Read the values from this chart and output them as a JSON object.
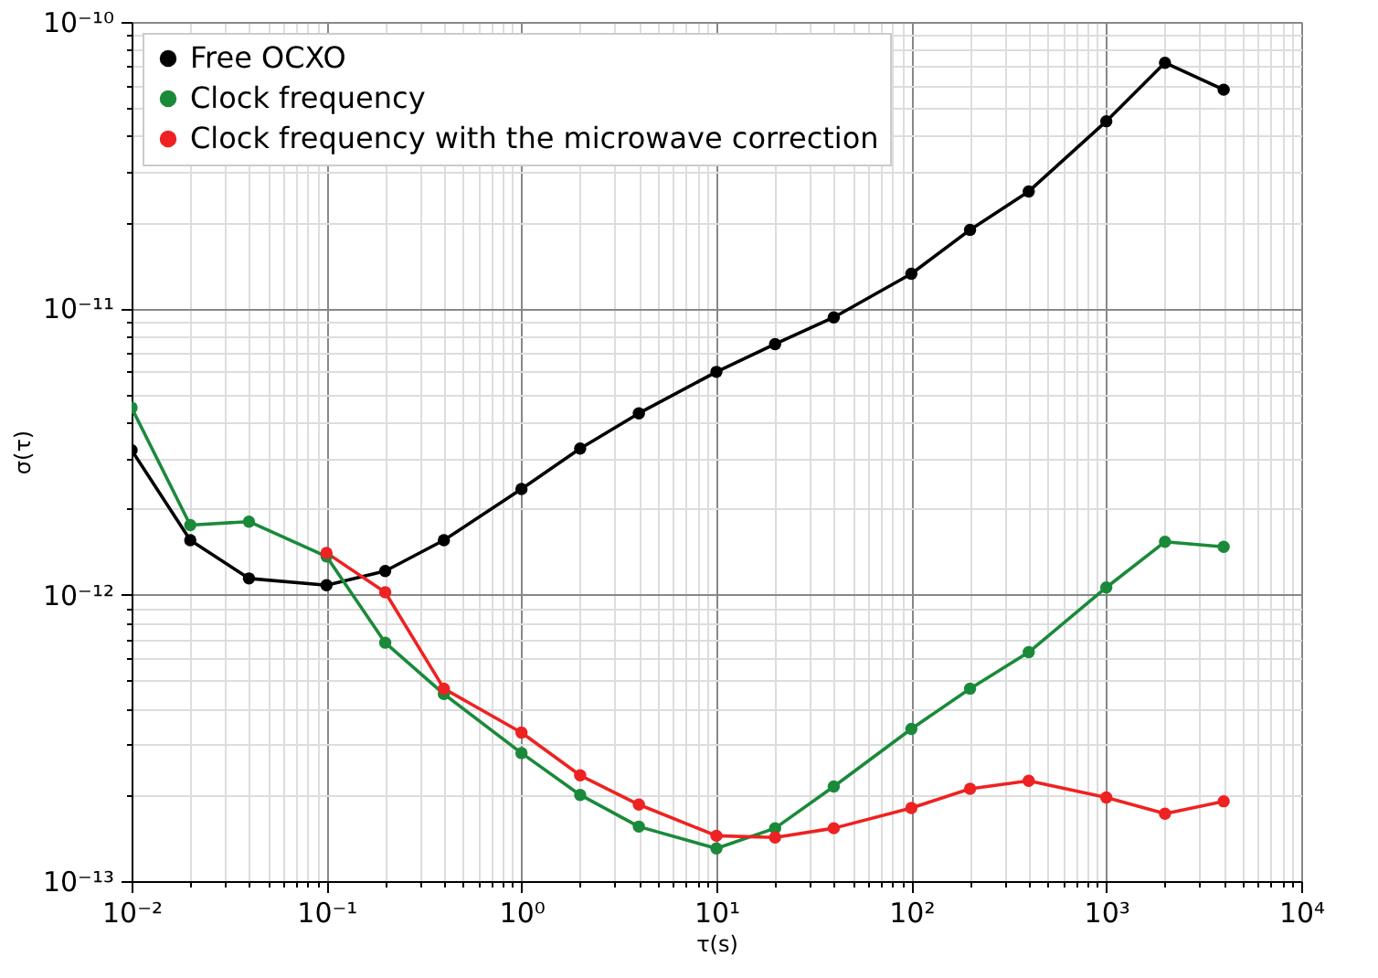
{
  "chart_data": {
    "type": "line",
    "xlabel": "τ(s)",
    "ylabel": "σ(τ)",
    "log": "xy",
    "grid": true,
    "legend": "top left",
    "marker": "circle",
    "line_style": "solid",
    "xlim": [
      0.01,
      10000
    ],
    "ylim": [
      1e-13,
      1e-10
    ],
    "xticks": [
      {
        "value": 0.01,
        "label": "10⁻²"
      },
      {
        "value": 0.02,
        "label": null
      },
      {
        "value": 0.03,
        "label": null
      },
      {
        "value": 0.04,
        "label": null
      },
      {
        "value": 0.05,
        "label": null
      },
      {
        "value": 0.06,
        "label": null
      },
      {
        "value": 0.07,
        "label": null
      },
      {
        "value": 0.08,
        "label": null
      },
      {
        "value": 0.09,
        "label": null
      },
      {
        "value": 0.1,
        "label": "10⁻¹"
      },
      {
        "value": 0.2,
        "label": null
      },
      {
        "value": 0.3,
        "label": null
      },
      {
        "value": 0.4,
        "label": null
      },
      {
        "value": 0.5,
        "label": null
      },
      {
        "value": 0.6,
        "label": null
      },
      {
        "value": 0.7,
        "label": null
      },
      {
        "value": 0.8,
        "label": null
      },
      {
        "value": 0.9,
        "label": null
      },
      {
        "value": 1,
        "label": "10⁰"
      },
      {
        "value": 2,
        "label": null
      },
      {
        "value": 3,
        "label": null
      },
      {
        "value": 4,
        "label": null
      },
      {
        "value": 5,
        "label": null
      },
      {
        "value": 6,
        "label": null
      },
      {
        "value": 7,
        "label": null
      },
      {
        "value": 8,
        "label": null
      },
      {
        "value": 9,
        "label": null
      },
      {
        "value": 10,
        "label": "10¹"
      },
      {
        "value": 20,
        "label": null
      },
      {
        "value": 30,
        "label": null
      },
      {
        "value": 40,
        "label": null
      },
      {
        "value": 50,
        "label": null
      },
      {
        "value": 60,
        "label": null
      },
      {
        "value": 70,
        "label": null
      },
      {
        "value": 80,
        "label": null
      },
      {
        "value": 90,
        "label": null
      },
      {
        "value": 100,
        "label": "10²"
      },
      {
        "value": 200,
        "label": null
      },
      {
        "value": 300,
        "label": null
      },
      {
        "value": 400,
        "label": null
      },
      {
        "value": 500,
        "label": null
      },
      {
        "value": 600,
        "label": null
      },
      {
        "value": 700,
        "label": null
      },
      {
        "value": 800,
        "label": null
      },
      {
        "value": 900,
        "label": null
      },
      {
        "value": 1000,
        "label": "10³"
      },
      {
        "value": 2000,
        "label": null
      },
      {
        "value": 3000,
        "label": null
      },
      {
        "value": 4000,
        "label": null
      },
      {
        "value": 5000,
        "label": null
      },
      {
        "value": 6000,
        "label": null
      },
      {
        "value": 7000,
        "label": null
      },
      {
        "value": 8000,
        "label": null
      },
      {
        "value": 9000,
        "label": null
      },
      {
        "value": 10000,
        "label": "10⁴"
      }
    ],
    "yticks": [
      {
        "value": 1e-13,
        "label": "10⁻¹³"
      },
      {
        "value": 2e-13,
        "label": null
      },
      {
        "value": 3e-13,
        "label": null
      },
      {
        "value": 4e-13,
        "label": null
      },
      {
        "value": 5e-13,
        "label": null
      },
      {
        "value": 6e-13,
        "label": null
      },
      {
        "value": 7e-13,
        "label": null
      },
      {
        "value": 8e-13,
        "label": null
      },
      {
        "value": 9e-13,
        "label": null
      },
      {
        "value": 1e-12,
        "label": "10⁻¹²"
      },
      {
        "value": 2e-12,
        "label": null
      },
      {
        "value": 3e-12,
        "label": null
      },
      {
        "value": 4e-12,
        "label": null
      },
      {
        "value": 5e-12,
        "label": null
      },
      {
        "value": 6e-12,
        "label": null
      },
      {
        "value": 7e-12,
        "label": null
      },
      {
        "value": 8e-12,
        "label": null
      },
      {
        "value": 9e-12,
        "label": null
      },
      {
        "value": 1e-11,
        "label": "10⁻¹¹"
      },
      {
        "value": 2e-11,
        "label": null
      },
      {
        "value": 3e-11,
        "label": null
      },
      {
        "value": 4e-11,
        "label": null
      },
      {
        "value": 5e-11,
        "label": null
      },
      {
        "value": 6e-11,
        "label": null
      },
      {
        "value": 7e-11,
        "label": null
      },
      {
        "value": 8e-11,
        "label": null
      },
      {
        "value": 9e-11,
        "label": null
      },
      {
        "value": 1e-10,
        "label": "10⁻¹⁰"
      }
    ],
    "x": [
      0.01,
      0.02,
      0.04,
      0.1,
      0.2,
      0.4,
      1,
      2,
      4,
      10,
      20,
      40,
      100,
      200,
      400,
      1000,
      2000,
      4000
    ],
    "series": [
      {
        "name": "Free OCXO",
        "color": "#000000",
        "values": [
          3.2e-12,
          1.55e-12,
          1.14e-12,
          1.08e-12,
          1.21e-12,
          1.55e-12,
          2.34e-12,
          3.24e-12,
          4.3e-12,
          6e-12,
          7.5e-12,
          9.3e-12,
          1.32e-11,
          1.88e-11,
          2.56e-11,
          4.5e-11,
          7.2e-11,
          5.8e-11
        ]
      },
      {
        "name": "Clock frequency",
        "color": "#1a8a3a",
        "values": [
          4.5e-12,
          1.75e-12,
          1.8e-12,
          1.36e-12,
          6.8e-13,
          4.5e-13,
          2.8e-13,
          2e-13,
          1.55e-13,
          1.3e-13,
          1.53e-13,
          2.14e-13,
          3.4e-13,
          4.7e-13,
          6.3e-13,
          1.06e-12,
          1.53e-12,
          1.47e-12
        ]
      },
      {
        "name": "Clock frequency with the microwave correction",
        "color": "#ee2222",
        "x": [
          0.1,
          0.2,
          0.4,
          1,
          2,
          4,
          10,
          20,
          40,
          100,
          200,
          400,
          1000,
          2000,
          4000
        ],
        "values": [
          1.4e-12,
          1.02e-12,
          4.7e-13,
          3.3e-13,
          2.34e-13,
          1.85e-13,
          1.44e-13,
          1.42e-13,
          1.53e-13,
          1.8e-13,
          2.1e-13,
          2.24e-13,
          1.96e-13,
          1.72e-13,
          1.9e-13
        ]
      }
    ]
  }
}
